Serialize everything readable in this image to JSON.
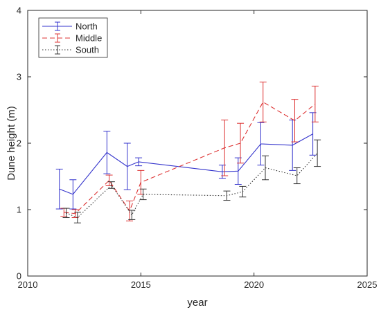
{
  "chart_data": {
    "type": "line",
    "xlabel": "year",
    "ylabel": "Dune height (m)",
    "xlim": [
      2010,
      2025
    ],
    "ylim": [
      0,
      4
    ],
    "xticks": [
      "2010",
      "2015",
      "2020",
      "2025"
    ],
    "yticks": [
      "0",
      "1",
      "2",
      "3",
      "4"
    ],
    "grid": false,
    "legend_position": "top-left",
    "series": [
      {
        "name": "North",
        "color": "#3333cc",
        "dash": "solid",
        "x": [
          2011.4,
          2012.0,
          2013.5,
          2014.4,
          2014.9,
          2018.6,
          2019.3,
          2020.3,
          2021.7,
          2022.6
        ],
        "y": [
          1.31,
          1.23,
          1.86,
          1.65,
          1.72,
          1.57,
          1.58,
          1.99,
          1.97,
          2.14
        ],
        "err": [
          0.3,
          0.22,
          0.32,
          0.35,
          0.06,
          0.1,
          0.2,
          0.32,
          0.38,
          0.32
        ]
      },
      {
        "name": "Middle",
        "color": "#dd3333",
        "dash": "dashed",
        "x": [
          2011.6,
          2012.1,
          2013.6,
          2014.5,
          2015.0,
          2018.7,
          2019.4,
          2020.4,
          2021.8,
          2022.7
        ],
        "y": [
          0.96,
          0.94,
          1.44,
          0.98,
          1.41,
          1.93,
          2.0,
          2.62,
          2.34,
          2.59
        ],
        "err": [
          0.06,
          0.06,
          0.08,
          0.15,
          0.18,
          0.42,
          0.3,
          0.3,
          0.32,
          0.27
        ]
      },
      {
        "name": "South",
        "color": "#333333",
        "dash": "dotted",
        "x": [
          2011.7,
          2012.2,
          2013.7,
          2014.6,
          2015.1,
          2018.8,
          2019.5,
          2020.5,
          2021.9,
          2022.8
        ],
        "y": [
          0.95,
          0.88,
          1.37,
          0.92,
          1.23,
          1.21,
          1.27,
          1.63,
          1.51,
          1.85
        ],
        "err": [
          0.07,
          0.08,
          0.05,
          0.07,
          0.08,
          0.07,
          0.08,
          0.18,
          0.12,
          0.2
        ]
      }
    ]
  }
}
